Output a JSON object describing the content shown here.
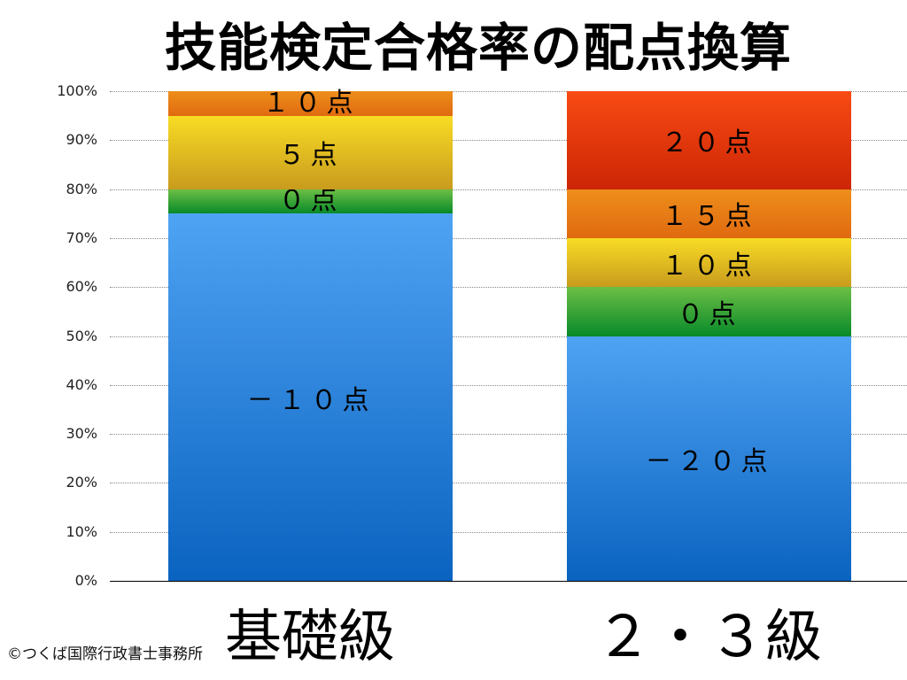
{
  "title": "技能検定合格率の配点換算",
  "credit": "©つくば国際行政書士事務所",
  "y_axis": {
    "ticks": [
      "0%",
      "10%",
      "20%",
      "30%",
      "40%",
      "50%",
      "60%",
      "70%",
      "80%",
      "90%",
      "100%"
    ]
  },
  "chart_data": {
    "type": "bar",
    "stacked": true,
    "title": "技能検定合格率の配点換算",
    "xlabel": "",
    "ylabel": "",
    "ylim": [
      0,
      100
    ],
    "y_tick_format": "percent",
    "grid": true,
    "categories": [
      "基礎級",
      "２・３級"
    ],
    "bars": [
      {
        "category": "基礎級",
        "segments": [
          {
            "label": "－１０点",
            "value": 75,
            "color_top": "#4fa3f3",
            "color_bottom": "#0a63c0"
          },
          {
            "label": "０点",
            "value": 5,
            "color_top": "#6cbf45",
            "color_bottom": "#088a2a"
          },
          {
            "label": "５点",
            "value": 15,
            "color_top": "#f8dc24",
            "color_bottom": "#c99b1e"
          },
          {
            "label": "１０点",
            "value": 5,
            "color_top": "#ee8e1b",
            "color_bottom": "#e06a10"
          }
        ]
      },
      {
        "category": "２・３級",
        "segments": [
          {
            "label": "－２０点",
            "value": 50,
            "color_top": "#4fa3f3",
            "color_bottom": "#0a63c0"
          },
          {
            "label": "０点",
            "value": 10,
            "color_top": "#6cbf45",
            "color_bottom": "#088a2a"
          },
          {
            "label": "１０点",
            "value": 10,
            "color_top": "#f8dc24",
            "color_bottom": "#c99b1e"
          },
          {
            "label": "１５点",
            "value": 10,
            "color_top": "#ee8e1b",
            "color_bottom": "#e06a10"
          },
          {
            "label": "２０点",
            "value": 20,
            "color_top": "#f84b14",
            "color_bottom": "#cc2505"
          }
        ]
      }
    ]
  }
}
